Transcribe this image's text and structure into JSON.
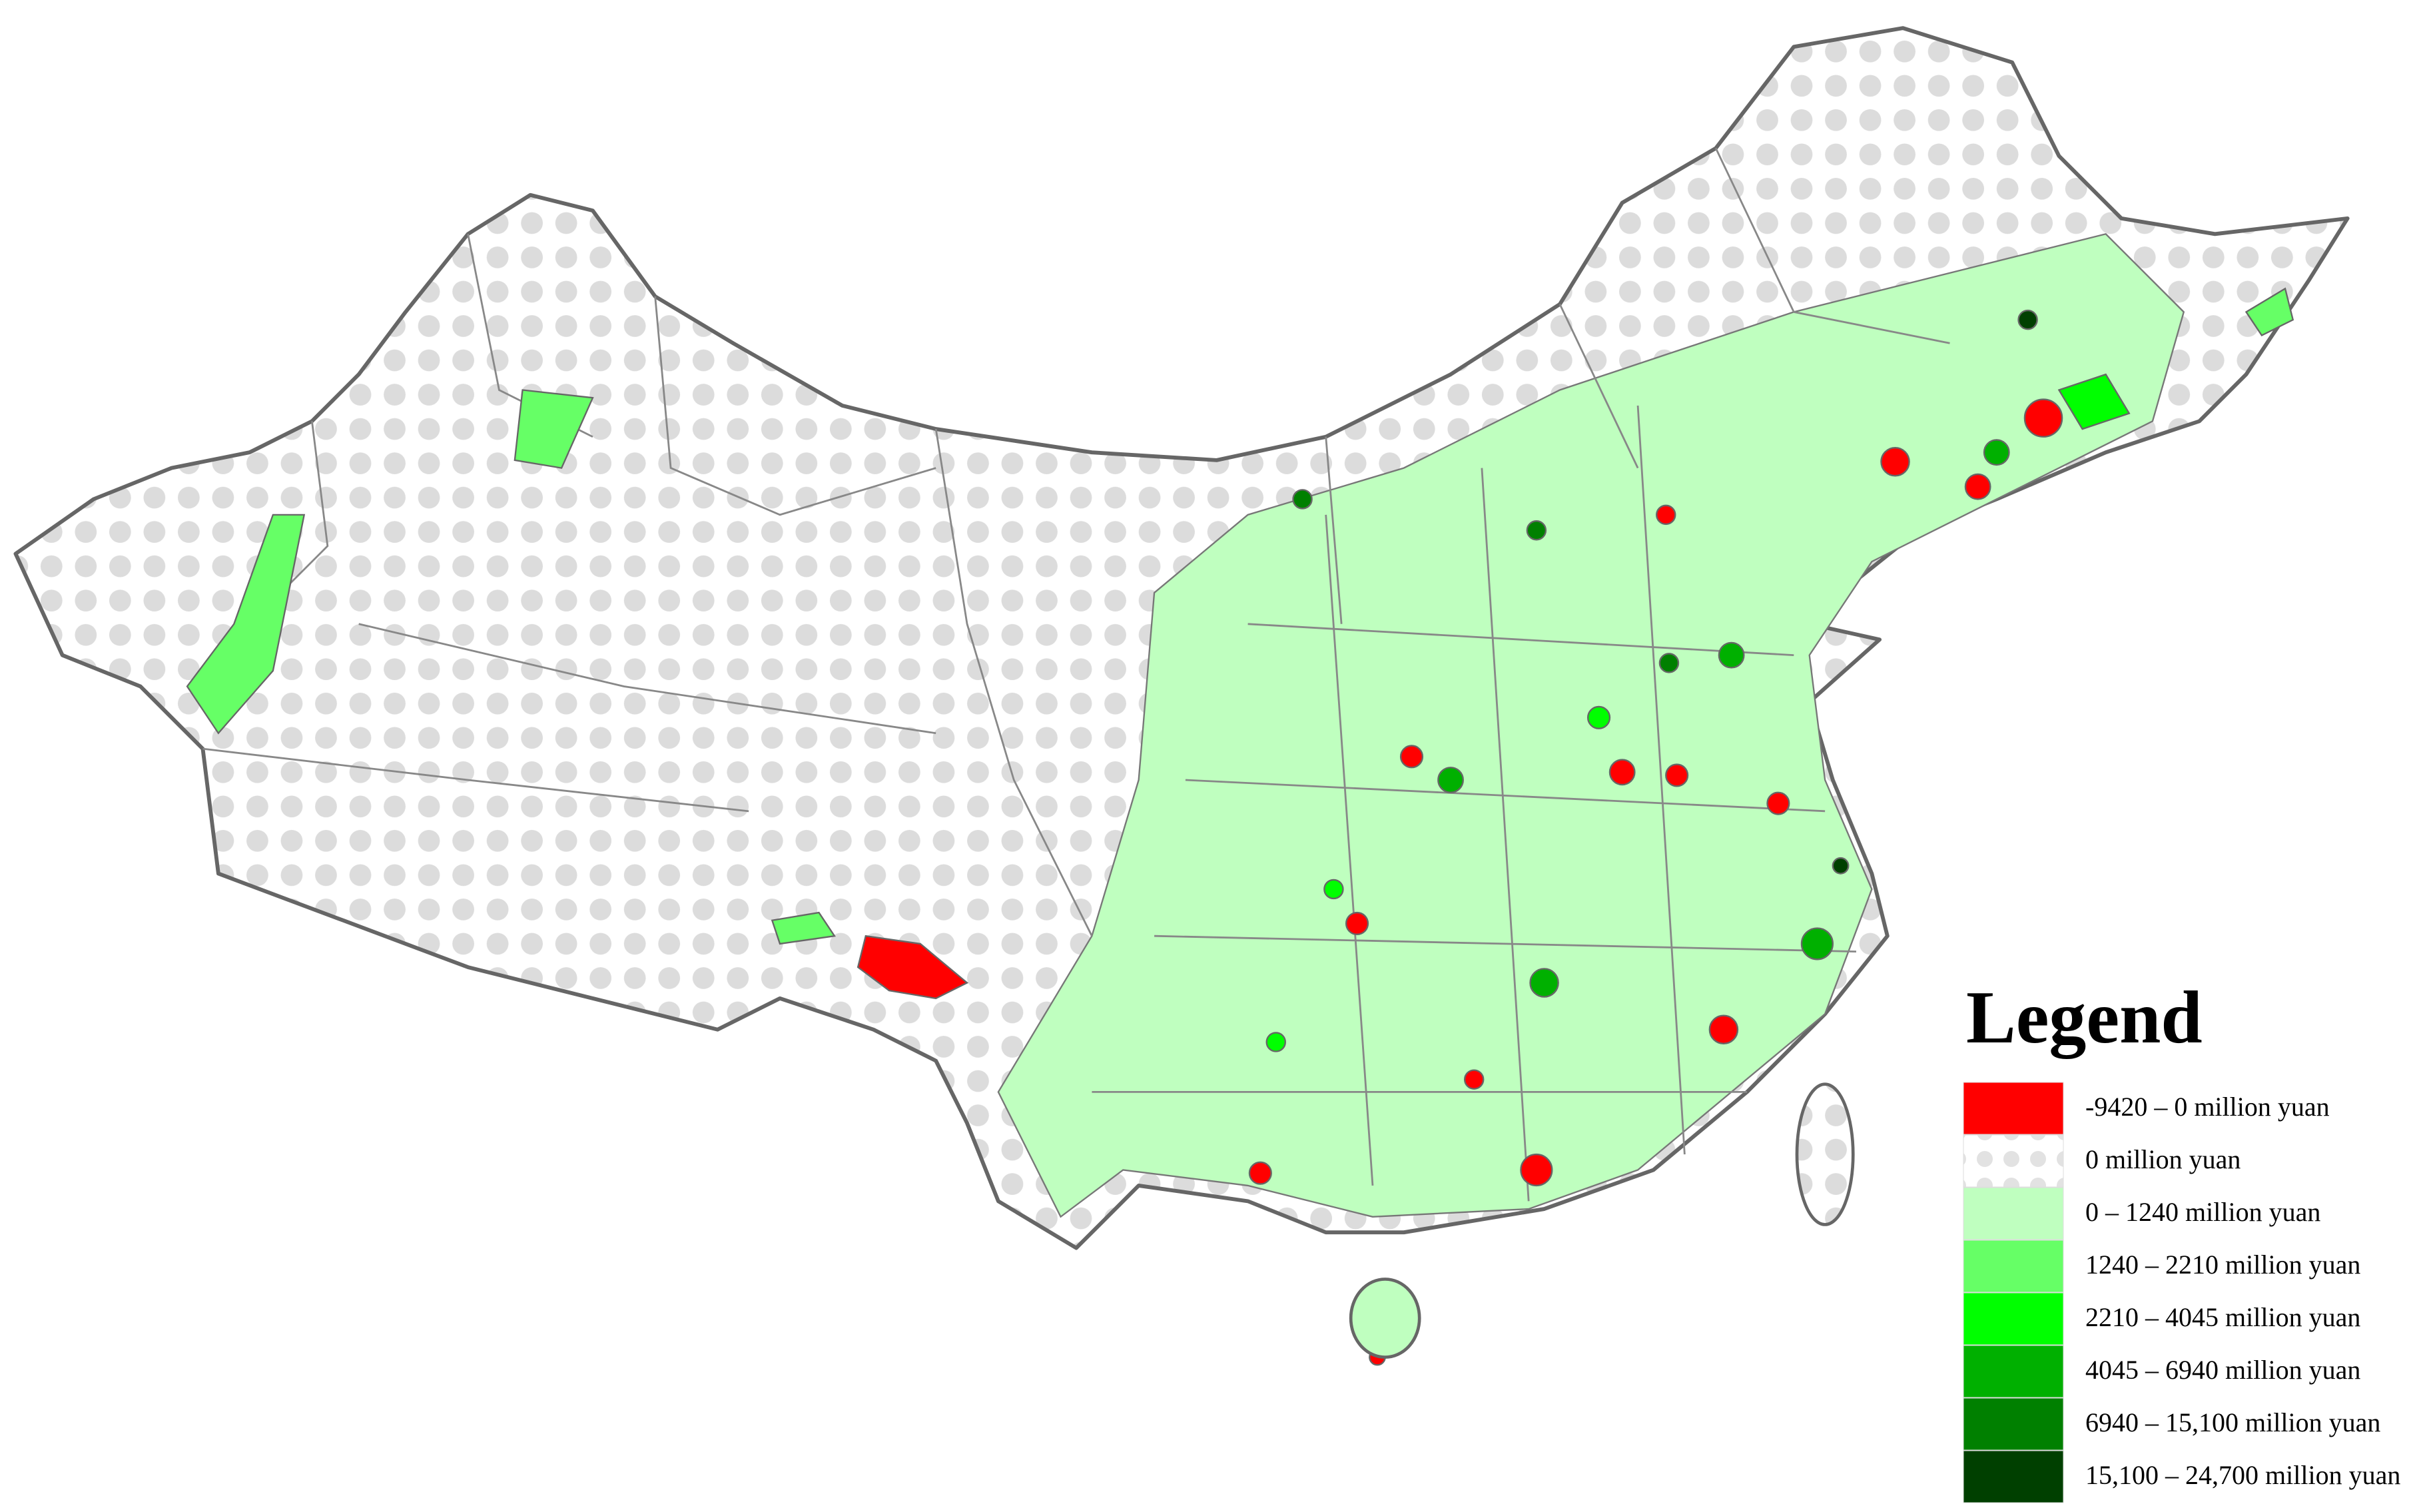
{
  "legend": {
    "title": "Legend",
    "items": [
      {
        "label": "-9420 – 0 million yuan",
        "color": "#ff0000"
      },
      {
        "label": "0 million yuan",
        "color": "#ffffff",
        "pattern": "dots"
      },
      {
        "label": "0 – 1240 million yuan",
        "color": "#bfffbf"
      },
      {
        "label": "1240 – 2210 million yuan",
        "color": "#66ff66"
      },
      {
        "label": "2210 – 4045 million yuan",
        "color": "#00ff00"
      },
      {
        "label": "4045 – 6940 million yuan",
        "color": "#00b000"
      },
      {
        "label": "6940 – 15,100 million yuan",
        "color": "#008000"
      },
      {
        "label": "15,100 – 24,700 million yuan",
        "color": "#004000"
      }
    ]
  }
}
